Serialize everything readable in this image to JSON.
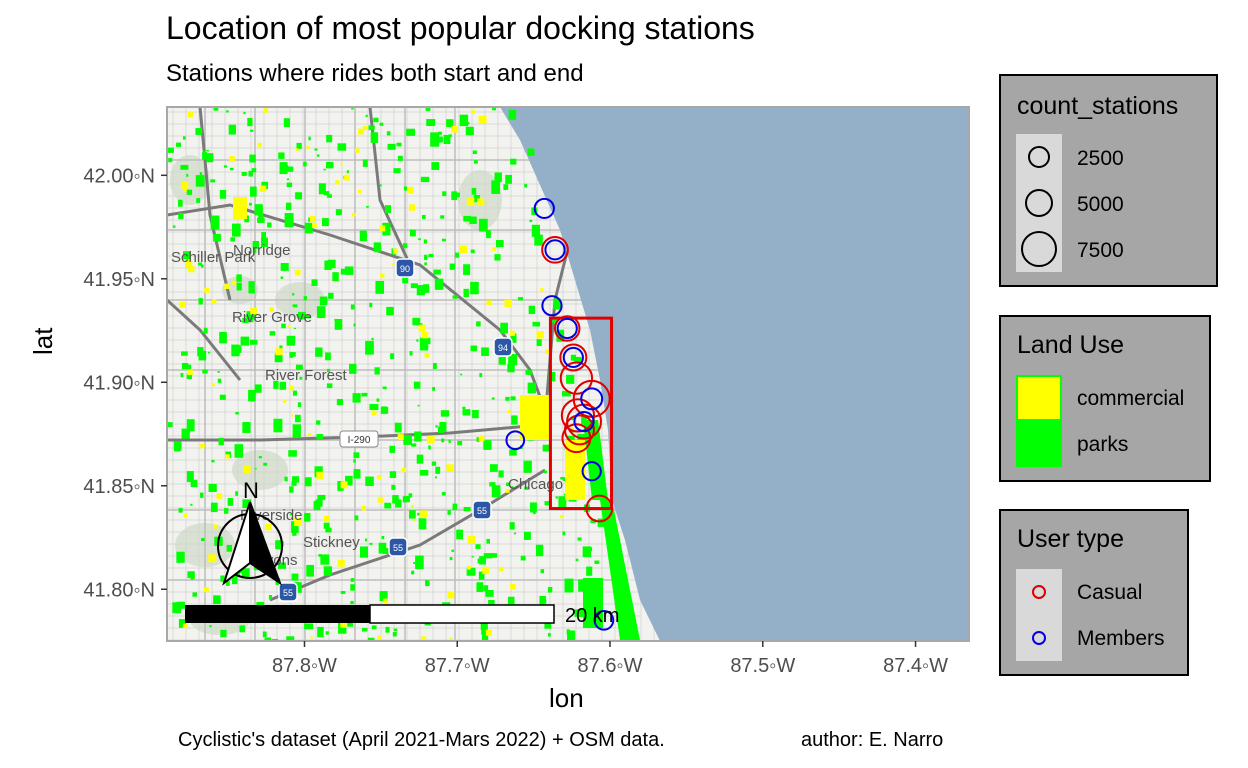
{
  "title": "Location of most popular docking stations",
  "subtitle": "Stations where rides both start and end",
  "axes": {
    "x_title": "lon",
    "y_title": "lat",
    "x_ticks": [
      "87.8◦W",
      "87.7◦W",
      "87.6◦W",
      "87.5◦W",
      "87.4◦W"
    ],
    "x_tick_values": [
      -87.8,
      -87.7,
      -87.6,
      -87.5,
      -87.4
    ],
    "y_ticks": [
      "42.00◦N",
      "41.95◦N",
      "41.90◦N",
      "41.85◦N",
      "41.80◦N"
    ],
    "y_tick_values": [
      42.0,
      41.95,
      41.9,
      41.85,
      41.8
    ],
    "lon_range": [
      -87.89,
      -87.365
    ],
    "lat_range": [
      41.775,
      42.033
    ]
  },
  "map_labels": [
    "Schiller Park",
    "Norridge",
    "River Grove",
    "River Forest",
    "Chicago",
    "Riverside",
    "Stickney",
    "Lyons"
  ],
  "highway_shields": [
    "90",
    "94",
    "55",
    "55",
    "55",
    "I-290"
  ],
  "north_arrow_label": "N",
  "scale_bar_label": "20 km",
  "caption_left": "Cyclistic's dataset (April 2021-Mars 2022) + OSM data.",
  "caption_right": "author: E. Narro",
  "highlight_box": {
    "lon": [
      -87.639,
      -87.599
    ],
    "lat": [
      41.839,
      41.931
    ],
    "color": "#e00000"
  },
  "colors": {
    "water": "#94afc8",
    "land": "#f2f2ef",
    "commercial": "#ffff00",
    "parks": "#00ff00",
    "casual": "#e00000",
    "members": "#0000e0",
    "legend_bg": "#a6a6a6"
  },
  "legends": {
    "size": {
      "title": "count_stations",
      "items": [
        {
          "label": "2500",
          "value": 2500
        },
        {
          "label": "5000",
          "value": 5000
        },
        {
          "label": "7500",
          "value": 7500
        }
      ]
    },
    "land_use": {
      "title": "Land Use",
      "items": [
        {
          "label": "commercial",
          "color": "#ffff00"
        },
        {
          "label": "parks",
          "color": "#00ff00"
        }
      ]
    },
    "user_type": {
      "title": "User type",
      "items": [
        {
          "label": "Casual",
          "color": "#e00000"
        },
        {
          "label": "Members",
          "color": "#0000e0"
        }
      ]
    }
  },
  "chart_data": {
    "type": "scatter",
    "title": "Location of most popular docking stations",
    "subtitle": "Stations where rides both start and end",
    "xlabel": "lon",
    "ylabel": "lat",
    "xlim": [
      -87.89,
      -87.365
    ],
    "ylim": [
      41.775,
      42.033
    ],
    "series": [
      {
        "name": "Casual",
        "points": [
          {
            "lon": -87.636,
            "lat": 41.964,
            "count": 3000
          },
          {
            "lon": -87.628,
            "lat": 41.926,
            "count": 2600
          },
          {
            "lon": -87.624,
            "lat": 41.912,
            "count": 3100
          },
          {
            "lon": -87.622,
            "lat": 41.902,
            "count": 5200
          },
          {
            "lon": -87.612,
            "lat": 41.892,
            "count": 7500
          },
          {
            "lon": -87.621,
            "lat": 41.884,
            "count": 5600
          },
          {
            "lon": -87.617,
            "lat": 41.881,
            "count": 6400
          },
          {
            "lon": -87.62,
            "lat": 41.877,
            "count": 4200
          },
          {
            "lon": -87.622,
            "lat": 41.873,
            "count": 3800
          },
          {
            "lon": -87.607,
            "lat": 41.839,
            "count": 3000
          }
        ]
      },
      {
        "name": "Members",
        "points": [
          {
            "lon": -87.643,
            "lat": 41.984,
            "count": 1200
          },
          {
            "lon": -87.636,
            "lat": 41.964,
            "count": 1200
          },
          {
            "lon": -87.638,
            "lat": 41.937,
            "count": 1200
          },
          {
            "lon": -87.628,
            "lat": 41.926,
            "count": 1200
          },
          {
            "lon": -87.624,
            "lat": 41.912,
            "count": 1200
          },
          {
            "lon": -87.612,
            "lat": 41.892,
            "count": 1600
          },
          {
            "lon": -87.617,
            "lat": 41.881,
            "count": 1200
          },
          {
            "lon": -87.662,
            "lat": 41.872,
            "count": 900
          },
          {
            "lon": -87.612,
            "lat": 41.857,
            "count": 1000
          },
          {
            "lon": -87.604,
            "lat": 41.785,
            "count": 1100
          }
        ]
      }
    ]
  }
}
